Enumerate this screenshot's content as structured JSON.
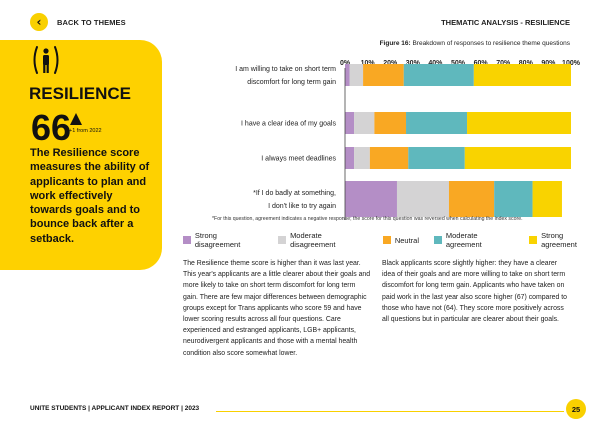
{
  "header": {
    "back_label": "BACK TO THEMES",
    "section_title": "THEMATIC ANALYSIS - RESILIENCE"
  },
  "theme_panel": {
    "icon": "person-between-brackets-icon",
    "title": "RESILIENCE",
    "score": "66",
    "change": "+1 from 2022",
    "description": "The Resilience score measures the ability of applicants to plan and work effectively towards goals and to bounce back after a setback."
  },
  "figure": {
    "title_bold": "Figure 16:",
    "title_rest": "Breakdown of responses to resilience theme questions",
    "footnote": "*For this question, agreement indicates a negative response; the score for this question was reversed when calculating the index score."
  },
  "chart_data": {
    "type": "bar",
    "orientation": "horizontal",
    "stacked": true,
    "x_ticks": [
      "0%",
      "10%",
      "20%",
      "30%",
      "40%",
      "50%",
      "60%",
      "70%",
      "80%",
      "90%",
      "100%"
    ],
    "xlim": [
      0,
      100
    ],
    "legend_position": "bottom",
    "categories": [
      [
        "I am willing to take on short term",
        "discomfort for long term gain"
      ],
      [
        "I have a clear idea of my goals"
      ],
      [
        "I always meet deadlines"
      ],
      [
        "*If I do badly at something,",
        "I don't like to try again"
      ]
    ],
    "series": [
      {
        "name": "Strong disagreement",
        "color": "#b48ec6",
        "values": [
          2,
          4,
          4,
          23
        ]
      },
      {
        "name": "Moderate disagreement",
        "color": "#d4d3d4",
        "values": [
          6,
          9,
          7,
          23
        ]
      },
      {
        "name": "Neutral",
        "color": "#f9a823",
        "values": [
          18,
          14,
          17,
          20
        ]
      },
      {
        "name": "Moderate agreement",
        "color": "#5fb8bd",
        "values": [
          31,
          27,
          25,
          17
        ]
      },
      {
        "name": "Strong agreement",
        "color": "#f9d300",
        "values": [
          43,
          46,
          47,
          13
        ]
      }
    ]
  },
  "body": {
    "col1": "The Resilience theme score is higher than it was last year. This year's applicants are a little clearer about their goals and more likely to take on short term discomfort for long term gain. There are few major differences between demographic groups except for Trans applicants who score 59 and have lower scoring results across all four questions. Care experienced and estranged applicants, LGB+ applicants, neurodivergent applicants and those with a mental health condition also score somewhat lower.",
    "col2": "Black applicants score slightly higher: they have a clearer idea of their goals and are more willing to take on short term discomfort for long term gain. Applicants who have taken on paid work in the last year also score higher (67) compared to those who have not (64). They score more positively across all questions but in particular are clearer about their goals."
  },
  "footer": {
    "text": "UNITE STUDENTS | APPLICANT INDEX REPORT | 2023",
    "page": "25"
  }
}
